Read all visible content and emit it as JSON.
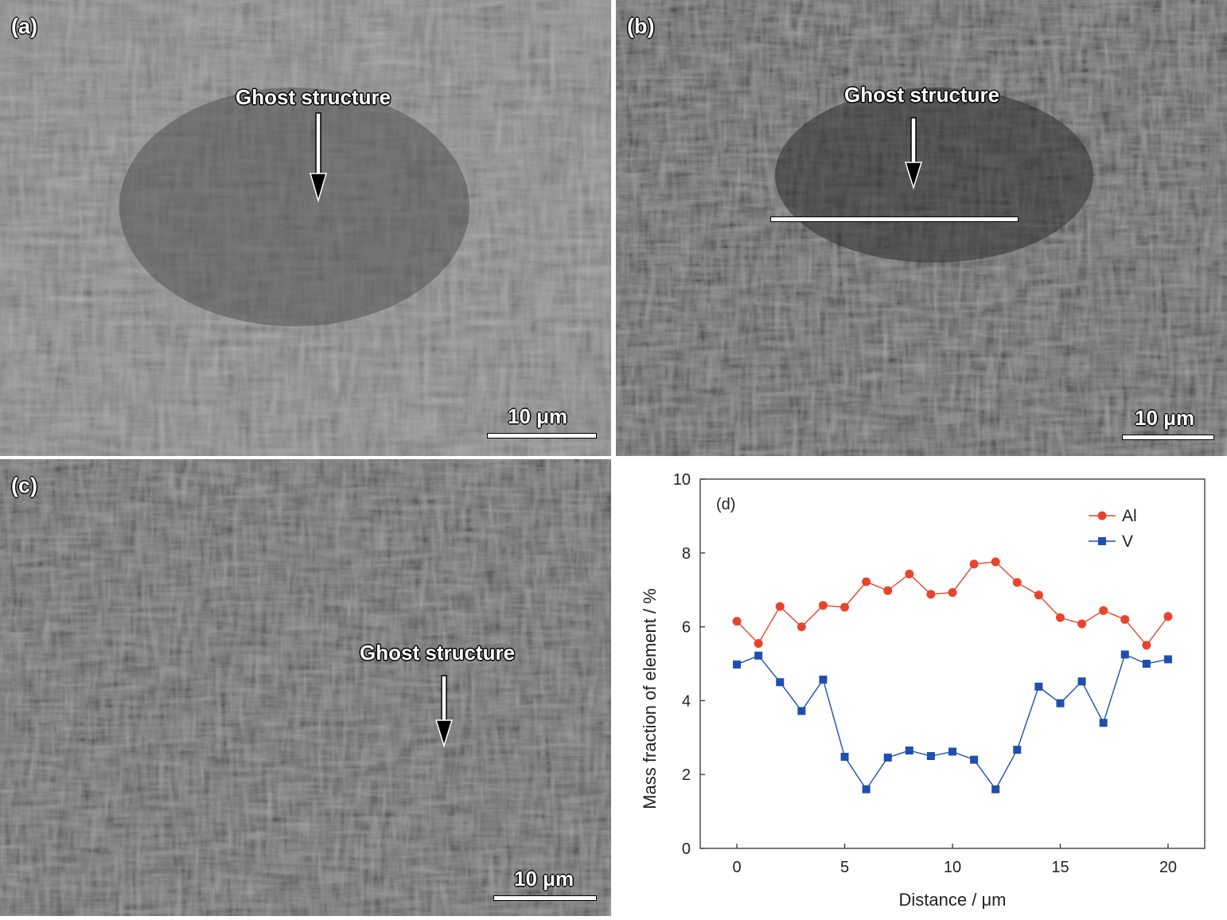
{
  "panels": {
    "a": {
      "label": "(a)",
      "annotation": "Ghost structure",
      "scale_bar": "10 μm"
    },
    "b": {
      "label": "(b)",
      "annotation": "Ghost structure",
      "scale_bar": "10 μm"
    },
    "c": {
      "label": "(c)",
      "annotation": "Ghost structure",
      "scale_bar": "10 μm"
    }
  },
  "colors": {
    "al": "#e8442c",
    "v": "#1f4fae"
  },
  "chart_data": {
    "type": "line",
    "panel_label": "(d)",
    "xlabel": "Distance / μm",
    "ylabel": "Mass fraction of element / %",
    "xlim": [
      -1.7,
      21.7
    ],
    "ylim": [
      0,
      10
    ],
    "xticks": [
      0,
      5,
      10,
      15,
      20
    ],
    "yticks": [
      0,
      2,
      4,
      6,
      8,
      10
    ],
    "grid": false,
    "legend_position": "top-right",
    "x": [
      0,
      1,
      2,
      3,
      4,
      5,
      6,
      7,
      8,
      9,
      10,
      11,
      12,
      13,
      14,
      15,
      16,
      17,
      18,
      19,
      20
    ],
    "series": [
      {
        "name": "Al",
        "marker": "circle",
        "values": [
          6.15,
          5.55,
          6.55,
          6.0,
          6.58,
          6.53,
          7.22,
          6.98,
          7.43,
          6.88,
          6.93,
          7.7,
          7.76,
          7.2,
          6.86,
          6.25,
          6.08,
          6.44,
          6.2,
          5.5,
          6.28
        ]
      },
      {
        "name": "V",
        "marker": "square",
        "values": [
          4.98,
          5.22,
          4.5,
          3.72,
          4.57,
          2.48,
          1.6,
          2.46,
          2.65,
          2.5,
          2.62,
          2.4,
          1.6,
          2.67,
          4.38,
          3.93,
          4.52,
          3.4,
          5.25,
          5.0,
          5.12
        ]
      }
    ]
  }
}
